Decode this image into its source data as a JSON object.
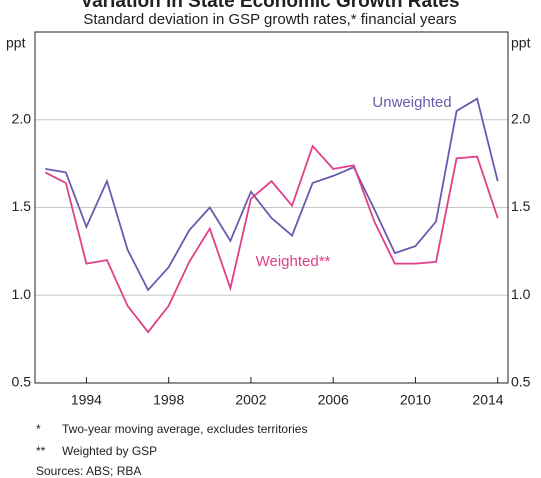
{
  "chart_data": {
    "type": "line",
    "title": "Variation in State Economic Growth Rates",
    "subtitle": "Standard deviation in GSP growth rates,* financial years",
    "y_unit": "ppt",
    "x": [
      1992,
      1993,
      1994,
      1995,
      1996,
      1997,
      1998,
      1999,
      2000,
      2001,
      2002,
      2003,
      2004,
      2005,
      2006,
      2007,
      2008,
      2009,
      2010,
      2011,
      2012,
      2013,
      2014
    ],
    "series": [
      {
        "name": "Unweighted",
        "color": "#6a5aae",
        "values": [
          1.72,
          1.7,
          1.39,
          1.65,
          1.26,
          1.03,
          1.16,
          1.37,
          1.5,
          1.31,
          1.59,
          1.44,
          1.34,
          1.64,
          1.68,
          1.73,
          1.49,
          1.24,
          1.28,
          1.42,
          2.05,
          2.12,
          1.65
        ]
      },
      {
        "name": "Weighted**",
        "color": "#e0408a",
        "values": [
          1.7,
          1.64,
          1.18,
          1.2,
          0.94,
          0.79,
          0.94,
          1.19,
          1.38,
          1.04,
          1.55,
          1.65,
          1.51,
          1.85,
          1.72,
          1.74,
          1.42,
          1.18,
          1.18,
          1.19,
          1.78,
          1.79,
          1.44
        ]
      }
    ],
    "xlim": [
      1991.5,
      2014.5
    ],
    "xticks": [
      1994,
      1998,
      2002,
      2006,
      2010,
      2014
    ],
    "ylim": [
      0.5,
      2.5
    ],
    "yticks": [
      {
        "value": 0.5,
        "label": "0.5"
      },
      {
        "value": 1.0,
        "label": "1.0"
      },
      {
        "value": 1.5,
        "label": "1.5"
      },
      {
        "value": 2.0,
        "label": "2.0"
      }
    ],
    "grid": true,
    "notes": [
      {
        "symbol": "*",
        "text": "Two-year moving average, excludes territories"
      },
      {
        "symbol": "**",
        "text": "Weighted by GSP"
      }
    ],
    "sources": "Sources:  ABS; RBA"
  }
}
